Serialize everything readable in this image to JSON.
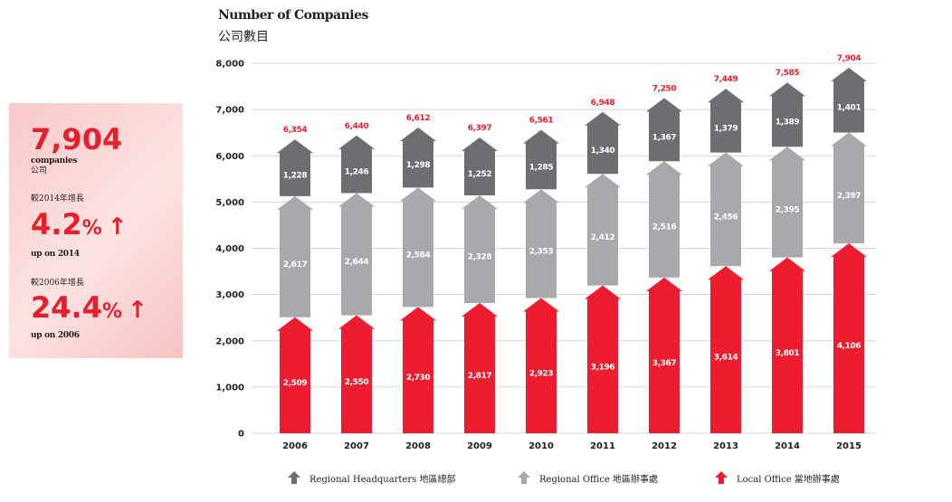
{
  "summary": {
    "total_value": "7,904",
    "total_label_en": "companies",
    "total_label_zh": "公司",
    "growth_2014_label": "較2014年增長",
    "growth_2014_value": "4.2",
    "growth_2014_sub": "up on 2014",
    "growth_2006_label": "較2006年增長",
    "growth_2006_value": "24.4",
    "growth_2006_sub": "up on 2006",
    "percent_sign": "%",
    "up_arrow": "↑"
  },
  "chart_data": {
    "type": "bar",
    "stacked": true,
    "title": "Number of Companies",
    "subtitle": "公司數目",
    "categories": [
      "2006",
      "2007",
      "2008",
      "2009",
      "2010",
      "2011",
      "2012",
      "2013",
      "2014",
      "2015"
    ],
    "series": [
      {
        "name": "Local Office 當地辦事處",
        "color": "#ed1c2e",
        "values": [
          2509,
          2550,
          2730,
          2817,
          2923,
          3196,
          3367,
          3614,
          3801,
          4106
        ]
      },
      {
        "name": "Regional Office 地區辦事處",
        "color": "#a7a9ac",
        "values": [
          2617,
          2644,
          2584,
          2328,
          2353,
          2412,
          2516,
          2456,
          2395,
          2397
        ]
      },
      {
        "name": "Regional Headquarters 地區總部",
        "color": "#6d6e71",
        "values": [
          1228,
          1246,
          1298,
          1252,
          1285,
          1340,
          1367,
          1379,
          1389,
          1401
        ]
      }
    ],
    "totals": [
      6354,
      6440,
      6612,
      6397,
      6561,
      6948,
      7250,
      7449,
      7585,
      7904
    ],
    "ylim": [
      0,
      8000
    ],
    "yticks": [
      "0",
      "1,000",
      "2,000",
      "3,000",
      "4,000",
      "5,000",
      "6,000",
      "7,000",
      "8,000"
    ],
    "ytick_values": [
      0,
      1000,
      2000,
      3000,
      4000,
      5000,
      6000,
      7000,
      8000
    ],
    "grid": true,
    "legend": "bottom"
  },
  "legend": {
    "hq": "Regional Headquarters 地區總部",
    "ro": "Regional Office 地區辦事處",
    "lo": "Local Office 當地辦事處"
  }
}
